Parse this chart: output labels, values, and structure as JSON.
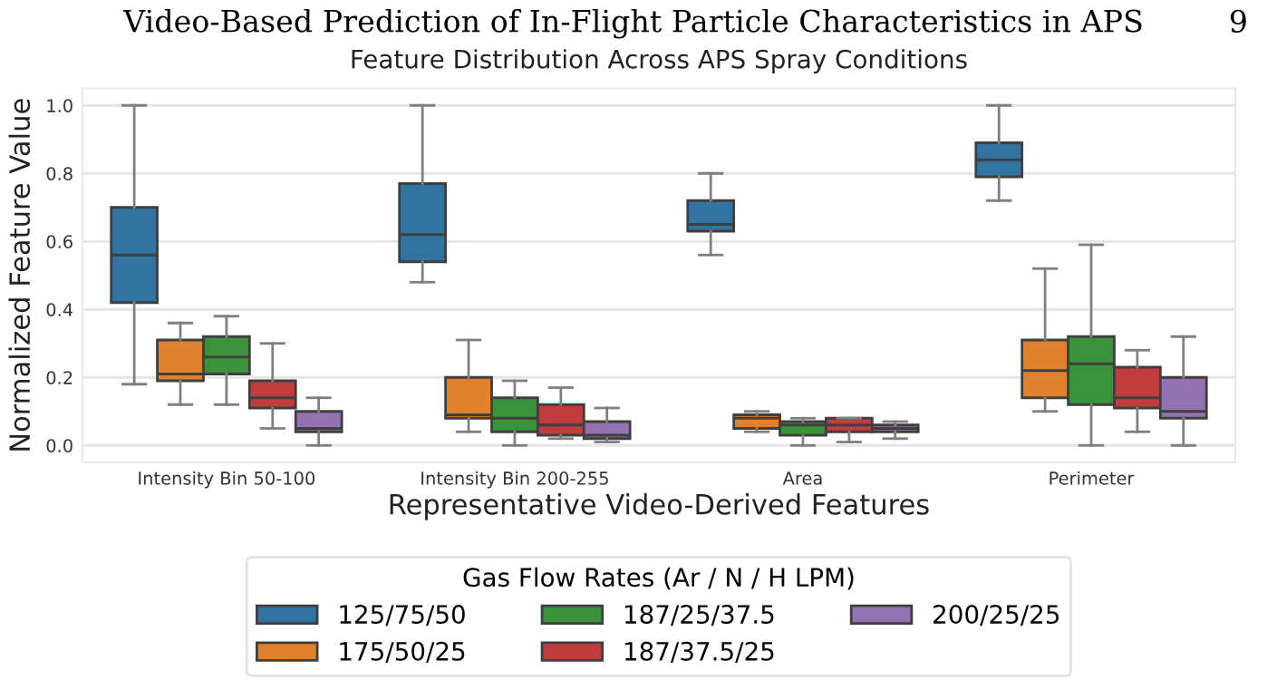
{
  "chart_data": {
    "type": "box",
    "title": "Feature Distribution Across APS Spray Conditions",
    "xlabel": "Representative Video-Derived Features",
    "ylabel": "Normalized Feature Value",
    "legend_title": "Gas Flow Rates (Ar / N / H LPM)",
    "annotations": [
      "Video-Based Prediction of In-Flight Particle Characteristics in APS",
      "9"
    ],
    "categories": [
      "Intensity Bin 50-100",
      "Intensity Bin 200-255",
      "Area",
      "Perimeter"
    ],
    "ylim": [
      -0.05,
      1.05
    ],
    "yticks": [
      {
        "value": 0,
        "label": "0.0"
      },
      {
        "value": 0.2,
        "label": "0.2"
      },
      {
        "value": 0.4,
        "label": "0.4"
      },
      {
        "value": 0.6,
        "label": "0.6"
      },
      {
        "value": 0.8,
        "label": "0.8"
      },
      {
        "value": 1,
        "label": "1.0"
      }
    ],
    "grid": "y",
    "legend": "bottom",
    "series": [
      {
        "name": "125/75/50",
        "color": "#3274a1",
        "boxes": [
          {
            "low": 0.18,
            "q1": 0.42,
            "median": 0.56,
            "q3": 0.7,
            "high": 1.0
          },
          {
            "low": 0.48,
            "q1": 0.54,
            "median": 0.62,
            "q3": 0.77,
            "high": 1.0
          },
          {
            "low": 0.56,
            "q1": 0.63,
            "median": 0.65,
            "q3": 0.72,
            "high": 0.8
          },
          {
            "low": 0.72,
            "q1": 0.79,
            "median": 0.84,
            "q3": 0.89,
            "high": 1.0
          }
        ]
      },
      {
        "name": "175/50/25",
        "color": "#e1812c",
        "boxes": [
          {
            "low": 0.12,
            "q1": 0.19,
            "median": 0.21,
            "q3": 0.31,
            "high": 0.36
          },
          {
            "low": 0.04,
            "q1": 0.08,
            "median": 0.09,
            "q3": 0.2,
            "high": 0.31
          },
          {
            "low": 0.04,
            "q1": 0.05,
            "median": 0.08,
            "q3": 0.09,
            "high": 0.1
          },
          {
            "low": 0.1,
            "q1": 0.14,
            "median": 0.22,
            "q3": 0.31,
            "high": 0.52
          }
        ]
      },
      {
        "name": "187/25/37.5",
        "color": "#3a923a",
        "boxes": [
          {
            "low": 0.12,
            "q1": 0.21,
            "median": 0.26,
            "q3": 0.32,
            "high": 0.38
          },
          {
            "low": 0.0,
            "q1": 0.04,
            "median": 0.08,
            "q3": 0.14,
            "high": 0.19
          },
          {
            "low": 0.0,
            "q1": 0.03,
            "median": 0.06,
            "q3": 0.07,
            "high": 0.08
          },
          {
            "low": 0.0,
            "q1": 0.12,
            "median": 0.24,
            "q3": 0.32,
            "high": 0.59
          }
        ]
      },
      {
        "name": "187/37.5/25",
        "color": "#c03d3e",
        "boxes": [
          {
            "low": 0.05,
            "q1": 0.11,
            "median": 0.14,
            "q3": 0.19,
            "high": 0.3
          },
          {
            "low": 0.02,
            "q1": 0.03,
            "median": 0.06,
            "q3": 0.12,
            "high": 0.17
          },
          {
            "low": 0.01,
            "q1": 0.04,
            "median": 0.06,
            "q3": 0.08,
            "high": 0.08
          },
          {
            "low": 0.04,
            "q1": 0.11,
            "median": 0.14,
            "q3": 0.23,
            "high": 0.28
          }
        ]
      },
      {
        "name": "200/25/25",
        "color": "#9372b2",
        "boxes": [
          {
            "low": 0.0,
            "q1": 0.04,
            "median": 0.05,
            "q3": 0.1,
            "high": 0.14
          },
          {
            "low": 0.01,
            "q1": 0.02,
            "median": 0.03,
            "q3": 0.07,
            "high": 0.11
          },
          {
            "low": 0.02,
            "q1": 0.04,
            "median": 0.05,
            "q3": 0.06,
            "high": 0.07
          },
          {
            "low": 0.0,
            "q1": 0.08,
            "median": 0.1,
            "q3": 0.2,
            "high": 0.32
          }
        ]
      }
    ]
  }
}
